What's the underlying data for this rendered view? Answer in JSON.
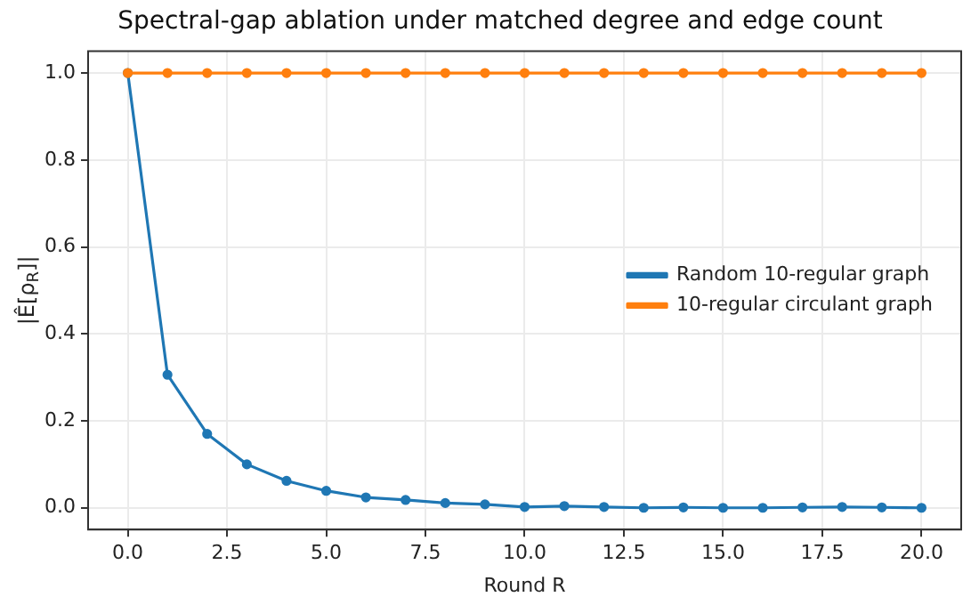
{
  "chart_data": {
    "type": "line",
    "title": "Spectral-gap ablation under matched degree and edge count",
    "xlabel": "Round R",
    "ylabel": "|Ê[ρ$_{R}$]|",
    "x": [
      0,
      1,
      2,
      3,
      4,
      5,
      6,
      7,
      8,
      9,
      10,
      11,
      12,
      13,
      14,
      15,
      16,
      17,
      18,
      19,
      20
    ],
    "series": [
      {
        "name": "Random 10-regular graph",
        "color": "#1f77b4",
        "values": [
          1.0,
          0.306,
          0.17,
          0.1,
          0.062,
          0.039,
          0.024,
          0.018,
          0.011,
          0.008,
          0.002,
          0.004,
          0.002,
          0.0,
          0.001,
          0.0,
          0.0,
          0.001,
          0.002,
          0.001,
          0.0
        ]
      },
      {
        "name": "10-regular circulant graph",
        "color": "#ff7f0e",
        "values": [
          1,
          1,
          1,
          1,
          1,
          1,
          1,
          1,
          1,
          1,
          1,
          1,
          1,
          1,
          1,
          1,
          1,
          1,
          1,
          1,
          1
        ]
      }
    ],
    "xlim": [
      -1,
      21
    ],
    "xticks": [
      {
        "value": 0,
        "label": "0.0"
      },
      {
        "value": 2.5,
        "label": "2.5"
      },
      {
        "value": 5,
        "label": "5.0"
      },
      {
        "value": 7.5,
        "label": "7.5"
      },
      {
        "value": 10,
        "label": "10.0"
      },
      {
        "value": 12.5,
        "label": "12.5"
      },
      {
        "value": 15,
        "label": "15.0"
      },
      {
        "value": 17.5,
        "label": "17.5"
      },
      {
        "value": 20,
        "label": "20.0"
      }
    ],
    "ylim": [
      -0.05,
      1.05
    ],
    "yticks": [
      {
        "value": 0,
        "label": "0.0"
      },
      {
        "value": 0.2,
        "label": "0.2"
      },
      {
        "value": 0.4,
        "label": "0.4"
      },
      {
        "value": 0.6,
        "label": "0.6"
      },
      {
        "value": 0.8,
        "label": "0.8"
      },
      {
        "value": 1,
        "label": "1.0"
      }
    ],
    "grid": true,
    "legend": "right",
    "marker": "circle",
    "line_style": "solid"
  }
}
